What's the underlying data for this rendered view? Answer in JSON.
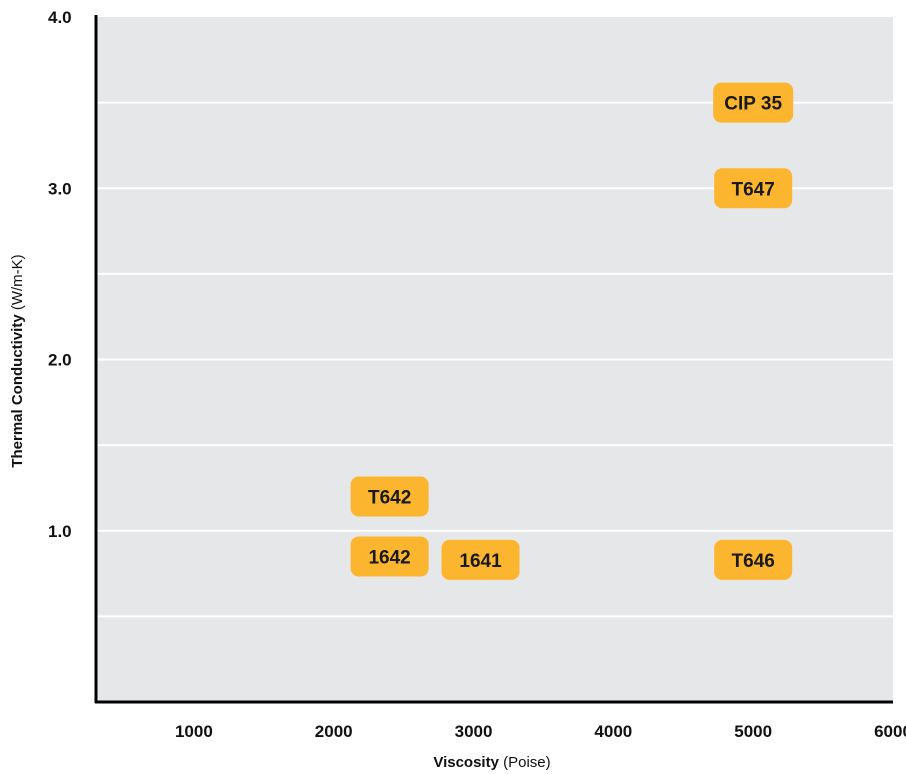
{
  "chart_data": {
    "type": "scatter",
    "title": "",
    "xlabel_bold": "Viscosity",
    "xlabel_unit": "(Poise)",
    "ylabel_bold": "Thermal Conductivity",
    "ylabel_unit": "(W/m-K)",
    "xlim": [
      300,
      6000
    ],
    "ylim": [
      0,
      4.0
    ],
    "x_ticks": [
      1000,
      2000,
      3000,
      4000,
      5000,
      6000
    ],
    "x_tick_labels": [
      "1000",
      "2000",
      "3000",
      "4000",
      "5000",
      "6000"
    ],
    "y_ticks": [
      1.0,
      2.0,
      3.0,
      4.0
    ],
    "y_tick_labels": [
      "1.0",
      "2.0",
      "3.0",
      "4.0"
    ],
    "y_minor_gridlines": [
      0.5,
      1.5,
      2.5,
      3.5
    ],
    "grid": true,
    "colors": {
      "plot_background": "#e6e7e9",
      "gridline": "#ffffff",
      "label_fill": "#fbb52f",
      "axis": "#000000"
    },
    "points": [
      {
        "label": "CIP 35",
        "x": 5000,
        "y": 3.5
      },
      {
        "label": "T647",
        "x": 5000,
        "y": 3.0
      },
      {
        "label": "T642",
        "x": 2400,
        "y": 1.2
      },
      {
        "label": "1642",
        "x": 2400,
        "y": 0.85
      },
      {
        "label": "1641",
        "x": 3050,
        "y": 0.83
      },
      {
        "label": "T646",
        "x": 5000,
        "y": 0.83
      }
    ]
  }
}
